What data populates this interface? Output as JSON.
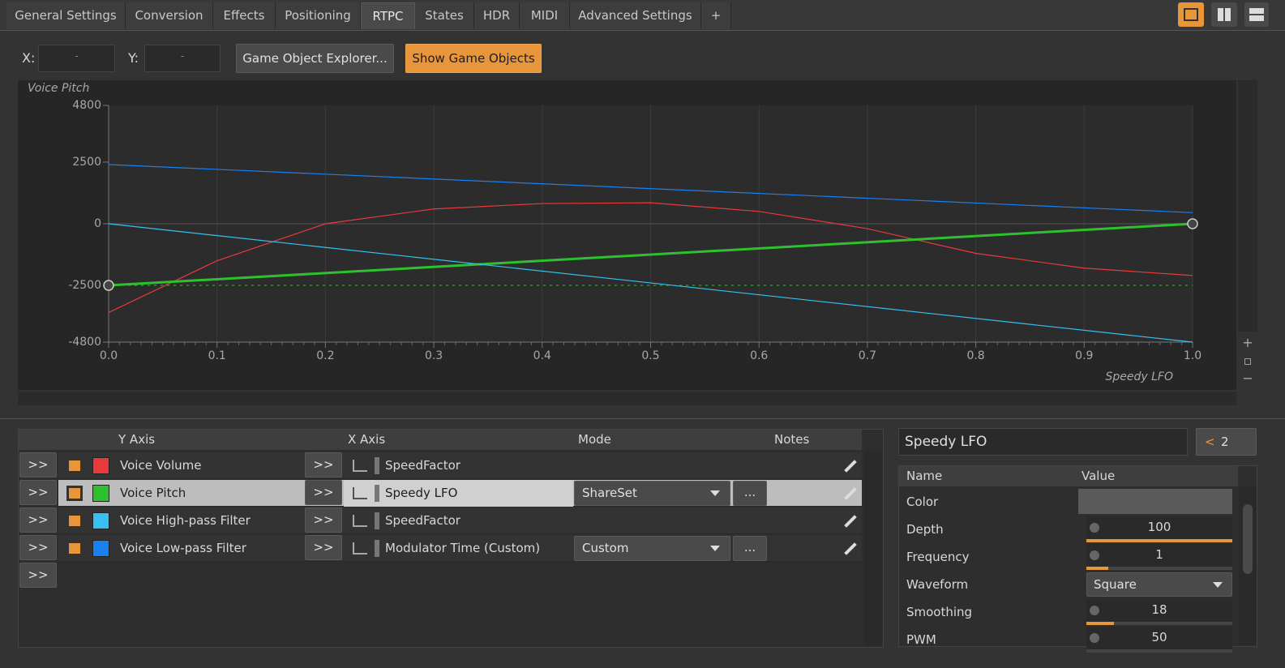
{
  "tabs": [
    "General Settings",
    "Conversion",
    "Effects",
    "Positioning",
    "RTPC",
    "States",
    "HDR",
    "MIDI",
    "Advanced Settings",
    "+"
  ],
  "active_tab": "RTPC",
  "position": {
    "x_label": "X:",
    "x_value": "-",
    "y_label": "Y:",
    "y_value": "-"
  },
  "buttons": [
    "Game Object Explorer...",
    "Show Game Objects"
  ],
  "graph": {
    "y_label": "Voice Pitch",
    "x_label": "Speedy LFO",
    "xlim": [
      0,
      1
    ],
    "ylim": [
      -4800,
      4800
    ],
    "yticks": [
      4800,
      2500,
      0,
      -2500,
      -4800
    ],
    "xticks": [
      {
        "value": 0,
        "label": "0.0"
      },
      0.1,
      0.2,
      0.3,
      0.4,
      0.5,
      0.6,
      0.7,
      0.8,
      0.9,
      {
        "value": 1,
        "label": "1.0"
      }
    ],
    "curves": [
      {
        "x": [
          0,
          0.1,
          0.2,
          0.3,
          0.4,
          0.5,
          0.6,
          0.7,
          0.8,
          0.9,
          1
        ],
        "values": [
          -3600,
          -1500,
          0,
          600,
          820,
          850,
          500,
          -200,
          -1200,
          -1800,
          -2100
        ]
      },
      {
        "x": [
          0,
          1
        ],
        "values": [
          -2500,
          0
        ]
      },
      {
        "x": [
          0,
          1
        ],
        "values": [
          0,
          -4800
        ]
      },
      {
        "x": [
          0,
          1
        ],
        "values": [
          2400,
          450
        ]
      }
    ],
    "selected_curve": 1
  },
  "table": {
    "headers": [
      "Y Axis",
      "X Axis",
      "Mode",
      "Notes"
    ],
    "expand_label": ">>",
    "more_label": "...",
    "selected_row": 1,
    "rows": [
      {
        "y_axis": "Voice Volume",
        "color": "#e83a3a",
        "x_axis": "SpeedFactor",
        "mode": null
      },
      {
        "y_axis": "Voice Pitch",
        "color": "#2ec02e",
        "x_axis": "Speedy LFO",
        "mode": "ShareSet"
      },
      {
        "y_axis": "Voice High-pass Filter",
        "color": "#35c2f0",
        "x_axis": "SpeedFactor",
        "mode": null
      },
      {
        "y_axis": "Voice Low-pass Filter",
        "color": "#1a7ff0",
        "x_axis": "Modulator Time (Custom)",
        "mode": "Custom"
      }
    ]
  },
  "inspector": {
    "title": "Speedy LFO",
    "share_count": 2,
    "headers": [
      "Name",
      "Value"
    ],
    "properties": [
      {
        "name": "Color",
        "value": null
      },
      {
        "name": "Depth",
        "value": 100
      },
      {
        "name": "Frequency",
        "value": 1
      },
      {
        "name": "Waveform",
        "value": "Square"
      },
      {
        "name": "Smoothing",
        "value": 18
      },
      {
        "name": "PWM",
        "value": 50
      }
    ]
  }
}
